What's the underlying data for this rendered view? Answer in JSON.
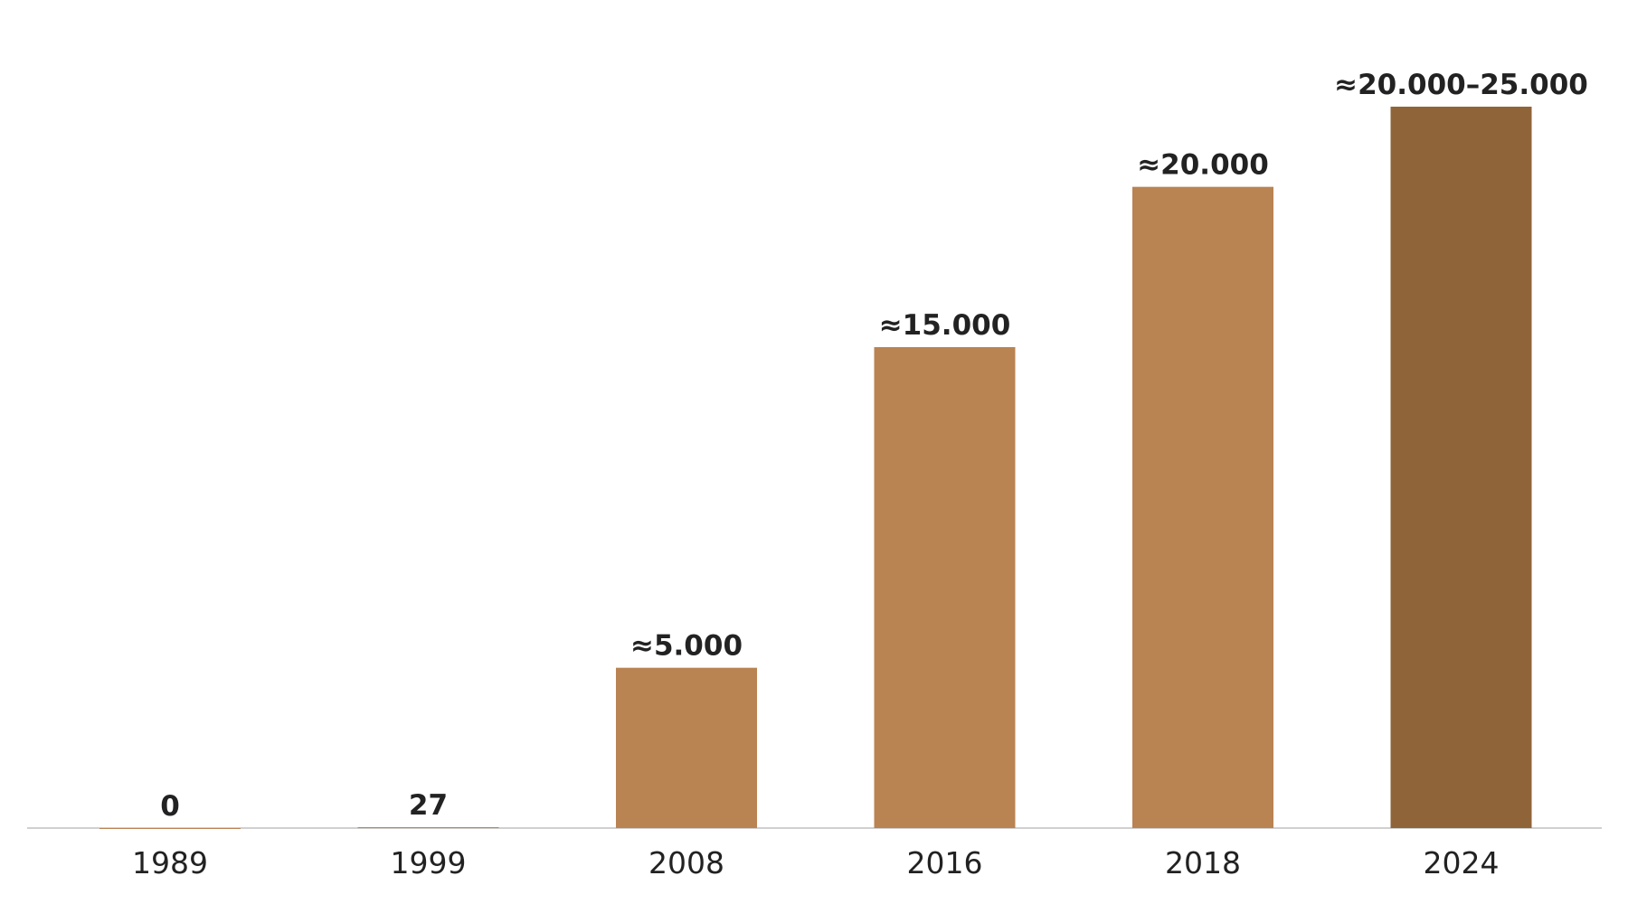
{
  "chart_data": {
    "type": "bar",
    "categories": [
      "1989",
      "1999",
      "2008",
      "2016",
      "2018",
      "2024"
    ],
    "values": [
      0,
      27,
      5000,
      15000,
      20000,
      22500
    ],
    "value_labels": [
      "0",
      "27",
      "≈5.000",
      "≈15.000",
      "≈20.000",
      "≈20.000–25.000"
    ],
    "colors": [
      "#b98352",
      "#b98352",
      "#b98352",
      "#b98352",
      "#b98352",
      "#8f6439"
    ]
  }
}
